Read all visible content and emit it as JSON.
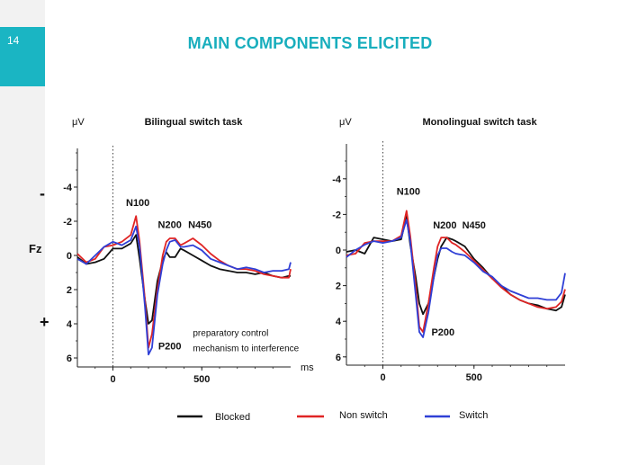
{
  "slide": {
    "page_number": "14",
    "title": "MAIN COMPONENTS ELICITED"
  },
  "colors": {
    "accent": "#1ab5c3",
    "title": "#18aebd",
    "blocked": "#111111",
    "non_switch": "#e02424",
    "switch": "#2f3fd6"
  },
  "side_labels": {
    "minus": "-",
    "electrode": "Fz",
    "plus": "+"
  },
  "legend": [
    {
      "key": "blocked",
      "label": "Blocked"
    },
    {
      "key": "non_switch",
      "label": "Non switch"
    },
    {
      "key": "switch",
      "label": "Switch"
    }
  ],
  "chart_data": [
    {
      "type": "line",
      "title": "Bilingual switch task",
      "ylabel": "μV",
      "xlabel": "ms",
      "xlim": [
        -200,
        1000
      ],
      "ylim": [
        -6,
        6
      ],
      "y_inverted": true,
      "yticks": [
        -4,
        -2,
        0,
        2,
        4,
        6
      ],
      "ytick_labels": [
        "-4",
        "-2",
        "0",
        "2",
        "4",
        "6"
      ],
      "xticks": [
        0,
        500
      ],
      "xtick_labels": [
        "0",
        "500"
      ],
      "annotations": [
        {
          "text": "N100",
          "x": 140,
          "y": -2.9
        },
        {
          "text": "N200",
          "x": 320,
          "y": -1.6
        },
        {
          "text": "N450",
          "x": 490,
          "y": -1.6
        },
        {
          "text": "P200",
          "x": 320,
          "y": 5.5
        },
        {
          "text": "preparatory control",
          "x": 450,
          "y": 4.7
        },
        {
          "text": "mechanism to interference",
          "x": 450,
          "y": 5.6
        }
      ],
      "series": [
        {
          "key": "blocked",
          "name": "Blocked",
          "x": [
            -200,
            -150,
            -100,
            -50,
            0,
            50,
            100,
            130,
            150,
            180,
            200,
            220,
            250,
            280,
            300,
            320,
            350,
            380,
            400,
            450,
            500,
            550,
            600,
            650,
            700,
            750,
            800,
            850,
            900,
            950,
            990,
            1000
          ],
          "y": [
            0.1,
            0.5,
            0.4,
            0.2,
            -0.4,
            -0.4,
            -0.7,
            -1.2,
            0.2,
            2.6,
            4.0,
            3.8,
            1.5,
            0.3,
            -0.2,
            0.1,
            0.1,
            -0.4,
            -0.3,
            0.0,
            0.3,
            0.6,
            0.8,
            0.9,
            1.0,
            1.0,
            1.1,
            1.0,
            1.2,
            1.3,
            1.2,
            1.2
          ]
        },
        {
          "key": "non_switch",
          "name": "Non switch",
          "x": [
            -200,
            -150,
            -100,
            -50,
            0,
            50,
            100,
            130,
            150,
            180,
            200,
            220,
            250,
            280,
            300,
            320,
            350,
            380,
            400,
            450,
            500,
            550,
            600,
            650,
            700,
            750,
            800,
            850,
            900,
            950,
            990,
            1000
          ],
          "y": [
            -0.1,
            0.4,
            0.2,
            -0.5,
            -0.6,
            -0.8,
            -1.2,
            -2.3,
            -0.8,
            2.6,
            5.4,
            4.6,
            2.0,
            0.0,
            -0.8,
            -1.0,
            -1.0,
            -0.6,
            -0.7,
            -1.0,
            -0.6,
            -0.1,
            0.3,
            0.6,
            0.8,
            0.8,
            0.9,
            1.1,
            1.2,
            1.3,
            1.3,
            0.8
          ]
        },
        {
          "key": "switch",
          "name": "Switch",
          "x": [
            -200,
            -150,
            -100,
            -50,
            0,
            50,
            100,
            130,
            150,
            180,
            200,
            220,
            250,
            280,
            300,
            320,
            350,
            380,
            400,
            450,
            500,
            550,
            600,
            650,
            700,
            750,
            800,
            850,
            900,
            950,
            990,
            1000
          ],
          "y": [
            0.2,
            0.5,
            0.0,
            -0.5,
            -0.8,
            -0.6,
            -0.9,
            -1.7,
            -0.5,
            3.0,
            5.8,
            5.4,
            2.3,
            0.5,
            -0.3,
            -0.8,
            -0.9,
            -0.5,
            -0.5,
            -0.6,
            -0.3,
            0.2,
            0.4,
            0.6,
            0.8,
            0.7,
            0.8,
            1.0,
            0.9,
            0.9,
            0.8,
            0.4
          ]
        }
      ]
    },
    {
      "type": "line",
      "title": "Monolingual switch task",
      "ylabel": "μV",
      "xlabel": "",
      "xlim": [
        -200,
        1000
      ],
      "ylim": [
        -6,
        6
      ],
      "y_inverted": true,
      "yticks": [
        -4,
        -2,
        0,
        2,
        4,
        6
      ],
      "ytick_labels": [
        "-4",
        "-2",
        "0",
        "2",
        "4",
        "6"
      ],
      "xticks": [
        0,
        500
      ],
      "xtick_labels": [
        "0",
        "500"
      ],
      "annotations": [
        {
          "text": "N100",
          "x": 140,
          "y": -3.1
        },
        {
          "text": "N200",
          "x": 340,
          "y": -1.2
        },
        {
          "text": "N450",
          "x": 500,
          "y": -1.2
        },
        {
          "text": "P200",
          "x": 330,
          "y": 4.8
        }
      ],
      "series": [
        {
          "key": "blocked",
          "name": "Blocked",
          "x": [
            -200,
            -150,
            -100,
            -50,
            0,
            50,
            100,
            130,
            150,
            180,
            200,
            220,
            250,
            280,
            300,
            320,
            350,
            380,
            400,
            450,
            500,
            550,
            600,
            650,
            700,
            750,
            800,
            850,
            900,
            950,
            980,
            1000
          ],
          "y": [
            0.1,
            0.0,
            0.2,
            -0.7,
            -0.6,
            -0.5,
            -0.6,
            -1.9,
            -0.3,
            1.5,
            3.0,
            3.6,
            3.0,
            1.5,
            0.5,
            -0.2,
            -0.7,
            -0.6,
            -0.5,
            -0.2,
            0.5,
            1.0,
            1.6,
            2.0,
            2.5,
            2.8,
            3.0,
            3.1,
            3.3,
            3.4,
            3.2,
            2.5
          ]
        },
        {
          "key": "non_switch",
          "name": "Non switch",
          "x": [
            -200,
            -150,
            -100,
            -50,
            0,
            50,
            100,
            130,
            150,
            180,
            200,
            220,
            250,
            280,
            300,
            320,
            350,
            380,
            400,
            450,
            500,
            550,
            600,
            650,
            700,
            750,
            800,
            850,
            900,
            950,
            980,
            1000
          ],
          "y": [
            0.3,
            0.2,
            -0.4,
            -0.5,
            -0.5,
            -0.5,
            -0.8,
            -2.2,
            -0.8,
            2.0,
            4.3,
            4.6,
            3.0,
            1.0,
            -0.2,
            -0.7,
            -0.7,
            -0.4,
            -0.3,
            0.1,
            0.6,
            1.1,
            1.6,
            2.1,
            2.5,
            2.8,
            3.0,
            3.2,
            3.3,
            3.2,
            2.9,
            2.2
          ]
        },
        {
          "key": "switch",
          "name": "Switch",
          "x": [
            -200,
            -150,
            -100,
            -50,
            0,
            50,
            100,
            130,
            150,
            180,
            200,
            220,
            250,
            280,
            300,
            320,
            350,
            380,
            400,
            450,
            500,
            550,
            600,
            650,
            700,
            750,
            800,
            850,
            900,
            950,
            980,
            1000
          ],
          "y": [
            0.4,
            0.0,
            -0.3,
            -0.5,
            -0.4,
            -0.5,
            -0.7,
            -1.7,
            -0.5,
            2.5,
            4.6,
            4.9,
            3.5,
            1.5,
            0.3,
            -0.1,
            -0.1,
            0.1,
            0.2,
            0.3,
            0.7,
            1.2,
            1.5,
            2.0,
            2.3,
            2.5,
            2.7,
            2.7,
            2.8,
            2.8,
            2.4,
            1.3
          ]
        }
      ]
    }
  ]
}
